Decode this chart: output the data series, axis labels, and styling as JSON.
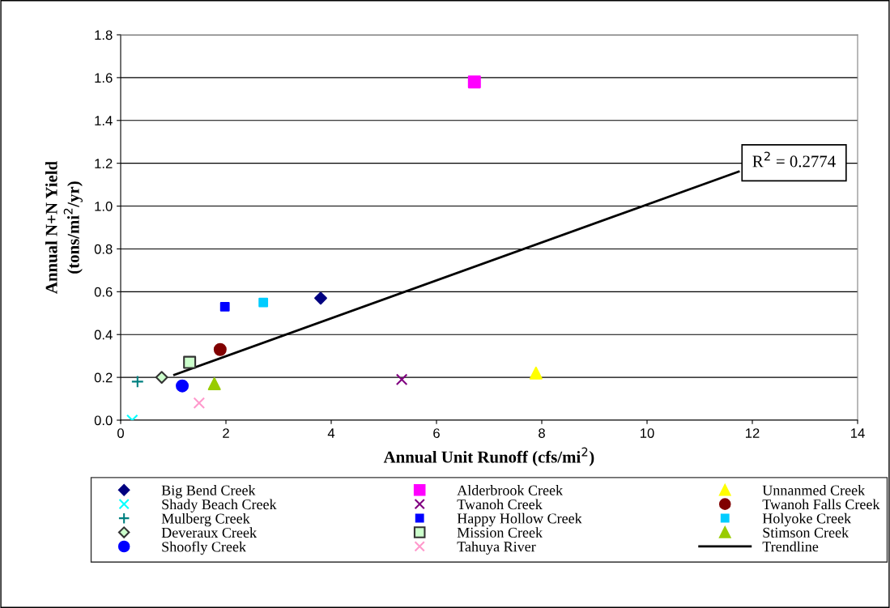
{
  "chart_data": {
    "type": "scatter",
    "xlabel": "Annual Unit Runoff (cfs/mi$^{2}$)",
    "ylabel": "Annual N+N Yield\n(tons/mi$^{2}$/yr)",
    "xlim": [
      0,
      14
    ],
    "xticks": [
      0,
      2,
      4,
      6,
      8,
      10,
      12,
      14
    ],
    "ylim": [
      0,
      1.8
    ],
    "yticks": [
      "0.0",
      0.2,
      0.4,
      0.6,
      0.8,
      "1.0",
      1.2,
      1.4,
      1.6,
      1.8
    ],
    "grid": "y",
    "legend": "bottom",
    "series": [
      {
        "name": "Big Bend Creek",
        "color": "#000080",
        "marker": "diamond",
        "x": [
          3.8
        ],
        "values": [
          0.57
        ]
      },
      {
        "name": "Alderbrook Creek",
        "color": "#ff00ff",
        "marker": "square",
        "x": [
          6.72
        ],
        "values": [
          1.58
        ]
      },
      {
        "name": "Unnanmed Creek",
        "color": "#ffff00",
        "marker": "triangle",
        "x": [
          7.89
        ],
        "values": [
          0.22
        ]
      },
      {
        "name": "Shady Beach Creek",
        "color": "#00ffff",
        "marker": "cross",
        "x": [
          0.22
        ],
        "values": [
          0.0
        ]
      },
      {
        "name": "Twanoh Creek",
        "color": "#800080",
        "marker": "cross",
        "x": [
          5.34
        ],
        "values": [
          0.19
        ]
      },
      {
        "name": "Twanoh Falls Creek",
        "color": "#800000",
        "marker": "circle",
        "x": [
          1.89
        ],
        "values": [
          0.33
        ]
      },
      {
        "name": "Mulberg Creek",
        "color": "#008080",
        "marker": "plus",
        "x": [
          0.32
        ],
        "values": [
          0.18
        ]
      },
      {
        "name": "Happy Hollow Creek",
        "color": "#0000ff",
        "marker": "square",
        "x": [
          1.98
        ],
        "values": [
          0.53
        ]
      },
      {
        "name": "Holyoke Creek",
        "color": "#00ccff",
        "marker": "square",
        "x": [
          2.71
        ],
        "values": [
          0.55
        ]
      },
      {
        "name": "Deveraux Creek",
        "color": "#ccffcc",
        "marker": "diamond",
        "x": [
          0.78
        ],
        "values": [
          0.2
        ]
      },
      {
        "name": "Mission Creek",
        "color": "#ccffcc",
        "marker": "square",
        "x": [
          1.31
        ],
        "values": [
          0.27
        ]
      },
      {
        "name": "Stimson Creek",
        "color": "#99cc00",
        "marker": "triangle",
        "x": [
          1.78
        ],
        "values": [
          0.17
        ]
      },
      {
        "name": "Shoofly Creek",
        "color": "#0000ff",
        "marker": "circle",
        "x": [
          1.17
        ],
        "values": [
          0.16
        ]
      },
      {
        "name": "Tahuya River",
        "color": "#ff99cc",
        "marker": "cross",
        "x": [
          1.49
        ],
        "values": [
          0.08
        ]
      },
      {
        "name": "Trendline",
        "type": "line",
        "color": "#000000",
        "marker": "none",
        "x": [
          1.02,
          11.74
        ],
        "values": [
          0.212,
          1.161
        ]
      }
    ],
    "annotations": [
      {
        "text": "R$^{2}$ = 0.2774",
        "x": 11.74,
        "y": 1.16
      }
    ]
  }
}
